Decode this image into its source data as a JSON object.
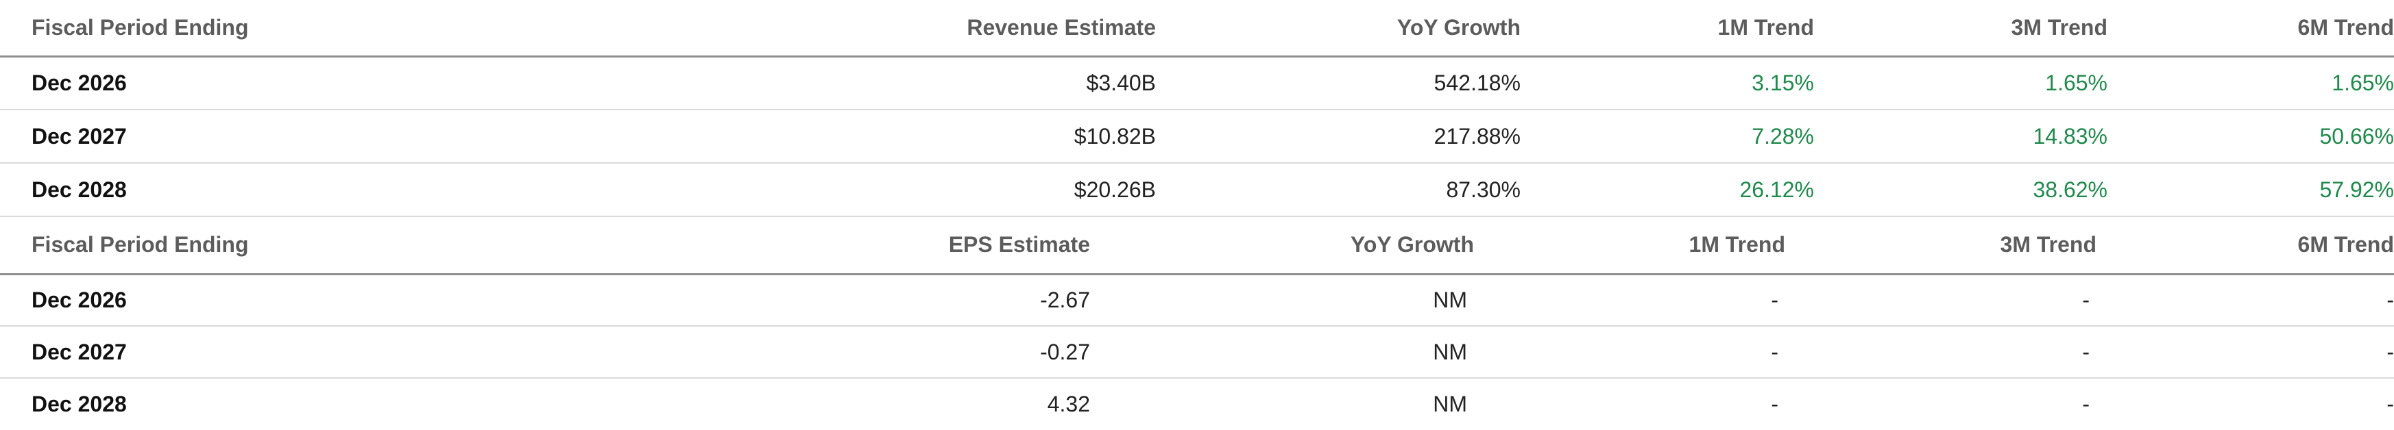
{
  "revenue_table": {
    "headers": [
      "Fiscal Period Ending",
      "Revenue Estimate",
      "YoY Growth",
      "1M Trend",
      "3M Trend",
      "6M Trend"
    ],
    "rows": [
      {
        "period": "Dec 2026",
        "estimate": "$3.40B",
        "yoy": "542.18%",
        "trend_1m": "3.15%",
        "trend_3m": "1.65%",
        "trend_6m": "1.65%"
      },
      {
        "period": "Dec 2027",
        "estimate": "$10.82B",
        "yoy": "217.88%",
        "trend_1m": "7.28%",
        "trend_3m": "14.83%",
        "trend_6m": "50.66%"
      },
      {
        "period": "Dec 2028",
        "estimate": "$20.26B",
        "yoy": "87.30%",
        "trend_1m": "26.12%",
        "trend_3m": "38.62%",
        "trend_6m": "57.92%"
      }
    ]
  },
  "eps_table": {
    "headers": [
      "Fiscal Period Ending",
      "EPS Estimate",
      "YoY Growth",
      "1M Trend",
      "3M Trend",
      "6M Trend"
    ],
    "rows": [
      {
        "period": "Dec 2026",
        "estimate": "-2.67",
        "yoy": "NM",
        "trend_1m": "-",
        "trend_3m": "-",
        "trend_6m": "-"
      },
      {
        "period": "Dec 2027",
        "estimate": "-0.27",
        "yoy": "NM",
        "trend_1m": "-",
        "trend_3m": "-",
        "trend_6m": "-"
      },
      {
        "period": "Dec 2028",
        "estimate": "4.32",
        "yoy": "NM",
        "trend_1m": "-",
        "trend_3m": "-",
        "trend_6m": "-"
      }
    ]
  },
  "colors": {
    "positive": "#1f8a4c",
    "header_text": "#5c5c5c",
    "header_rule": "#8e8e8e",
    "row_rule": "#d9d9d9"
  }
}
